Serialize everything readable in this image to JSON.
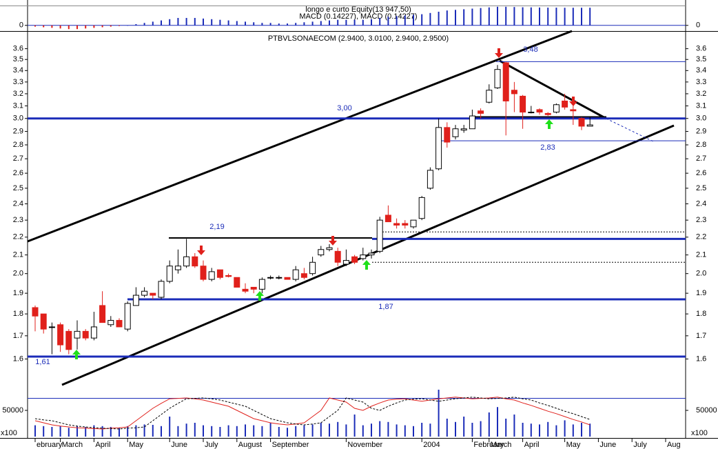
{
  "chart_data": [
    {
      "type": "macd-histogram",
      "title": "longo e curto Equity(13 947,50)",
      "subtitle": "MACD (0.14227), MACD (0.14227)",
      "ylim": [
        -0.04,
        0.16
      ],
      "yticks": [
        0
      ],
      "pos_color": "#1a2bb8",
      "neg_color": "#e0201b",
      "values": [
        -0.01,
        -0.015,
        -0.02,
        -0.025,
        -0.03,
        -0.03,
        -0.025,
        -0.02,
        -0.015,
        -0.01,
        -0.005,
        0,
        0.01,
        0.02,
        0.03,
        0.04,
        0.05,
        0.06,
        0.06,
        0.06,
        0.055,
        0.05,
        0.045,
        0.04,
        0.035,
        0.03,
        0.025,
        0.02,
        0.02,
        0.015,
        0.015,
        0.02,
        0.025,
        0.03,
        0.035,
        0.04,
        0.045,
        0.045,
        0.045,
        0.045,
        0.05,
        0.06,
        0.07,
        0.075,
        0.08,
        0.085,
        0.09,
        0.1,
        0.11,
        0.12,
        0.125,
        0.13,
        0.135,
        0.14,
        0.145,
        0.15,
        0.15,
        0.148,
        0.146,
        0.145,
        0.144,
        0.143,
        0.143,
        0.142,
        0.142,
        0.142,
        0.14227,
        null,
        null,
        null,
        null,
        null,
        null,
        null,
        null,
        null,
        null,
        null
      ]
    },
    {
      "type": "candlestick",
      "title": "PTBVLSONAECOM (2.9400, 3.0100, 2.9400, 2.9500)",
      "log_scale": true,
      "ylim": [
        1.49,
        3.77
      ],
      "yticks": [
        1.6,
        1.7,
        1.8,
        1.9,
        {
          "value": 2,
          "label": "2.0"
        },
        2.1,
        2.2,
        2.3,
        2.4,
        2.5,
        2.6,
        2.7,
        2.8,
        2.9,
        {
          "value": 3,
          "label": "3.0"
        },
        3.1,
        3.2,
        3.3,
        3.4,
        3.5,
        3.6
      ],
      "up_color": "#ffffff",
      "down_color": "#e0201b",
      "categories": [
        "ebruary",
        null,
        null,
        "March",
        null,
        null,
        null,
        "April",
        null,
        null,
        null,
        "May",
        null,
        null,
        null,
        null,
        "June",
        null,
        null,
        null,
        "July",
        null,
        null,
        null,
        "August",
        null,
        null,
        null,
        "September",
        null,
        null,
        null,
        null,
        null,
        null,
        null,
        null,
        "November",
        null,
        null,
        null,
        null,
        null,
        null,
        null,
        null,
        "2004",
        null,
        null,
        null,
        null,
        null,
        "February",
        null,
        "March",
        null,
        null,
        null,
        "April",
        null,
        null,
        null,
        null,
        "May",
        null,
        null,
        null,
        "June",
        null,
        null,
        null,
        "July",
        null,
        null,
        null,
        "Aug",
        null,
        null
      ],
      "open": [
        1.83,
        1.8,
        1.74,
        1.75,
        1.72,
        1.69,
        1.72,
        1.69,
        1.84,
        1.75,
        1.77,
        1.73,
        1.84,
        1.89,
        1.9,
        1.88,
        1.96,
        2.02,
        2.04,
        2.09,
        2.04,
        1.97,
        2.02,
        1.99,
        1.98,
        1.92,
        1.93,
        1.92,
        1.98,
        1.98,
        1.98,
        1.97,
        2.0,
        2.0,
        2.1,
        2.13,
        2.12,
        2.05,
        2.09,
        2.08,
        2.1,
        2.12,
        2.33,
        2.28,
        2.28,
        2.26,
        2.31,
        2.5,
        2.63,
        2.93,
        2.86,
        2.91,
        2.92,
        3.06,
        3.13,
        3.25,
        3.47,
        3.23,
        3.18,
        3.05,
        3.07,
        3.04,
        3.05,
        3.14,
        3.07,
        3.0,
        2.94,
        null,
        null,
        null,
        null,
        null,
        null,
        null,
        null,
        null,
        null,
        null
      ],
      "high": [
        1.84,
        1.8,
        1.76,
        1.76,
        1.73,
        1.77,
        1.73,
        1.81,
        1.91,
        1.79,
        1.78,
        1.86,
        1.93,
        1.93,
        1.9,
        1.97,
        2.07,
        2.13,
        2.19,
        2.11,
        2.07,
        2.03,
        2.02,
        2.0,
        1.98,
        1.95,
        1.93,
        1.98,
        1.99,
        1.99,
        1.98,
        2.04,
        2.03,
        2.09,
        2.15,
        2.16,
        2.14,
        2.13,
        2.1,
        2.14,
        2.13,
        2.32,
        2.39,
        2.31,
        2.3,
        2.3,
        2.45,
        2.64,
        3.0,
        2.97,
        2.95,
        2.95,
        3.07,
        3.08,
        3.28,
        3.45,
        3.48,
        3.3,
        3.19,
        3.1,
        3.08,
        3.05,
        3.12,
        3.2,
        3.1,
        3.01,
        3.01,
        null,
        null,
        null,
        null,
        null,
        null,
        null,
        null,
        null,
        null,
        null
      ],
      "low": [
        1.72,
        1.71,
        1.62,
        1.63,
        1.62,
        1.64,
        1.68,
        1.68,
        1.76,
        1.74,
        1.74,
        1.72,
        1.84,
        1.88,
        1.87,
        1.87,
        1.95,
        2.0,
        2.03,
        2.03,
        1.96,
        1.96,
        1.97,
        1.98,
        1.93,
        1.9,
        1.9,
        1.9,
        1.97,
        1.97,
        1.97,
        1.96,
        1.97,
        1.99,
        2.09,
        2.12,
        2.04,
        2.04,
        2.05,
        2.07,
        2.08,
        2.11,
        2.29,
        2.25,
        2.25,
        2.25,
        2.3,
        2.49,
        2.62,
        2.78,
        2.84,
        2.89,
        2.92,
        3.0,
        3.12,
        3.24,
        2.87,
        3.05,
        2.92,
        3.04,
        3.03,
        3.02,
        3.04,
        3.07,
        2.95,
        2.91,
        2.94,
        null,
        null,
        null,
        null,
        null,
        null,
        null,
        null,
        null,
        null,
        null
      ],
      "close": [
        1.79,
        1.73,
        1.74,
        1.66,
        1.64,
        1.72,
        1.69,
        1.74,
        1.76,
        1.77,
        1.74,
        1.85,
        1.89,
        1.91,
        1.89,
        1.96,
        2.04,
        2.04,
        2.09,
        2.04,
        1.97,
        2.01,
        1.98,
        1.985,
        1.93,
        1.91,
        1.92,
        1.97,
        1.98,
        1.98,
        1.97,
        2.02,
        1.98,
        2.06,
        2.13,
        2.14,
        2.06,
        2.07,
        2.06,
        2.1,
        2.11,
        2.3,
        2.29,
        2.27,
        2.27,
        2.3,
        2.44,
        2.62,
        2.93,
        2.82,
        2.92,
        2.92,
        3.02,
        3.04,
        3.23,
        3.41,
        3.14,
        3.2,
        3.05,
        3.05,
        3.05,
        3.03,
        3.11,
        3.09,
        3.06,
        2.94,
        2.95,
        null,
        null,
        null,
        null,
        null,
        null,
        null,
        null,
        null,
        null,
        null
      ],
      "levels": [
        {
          "value": 3.48,
          "label": "3,48"
        },
        {
          "value": 3.0,
          "label": "3,00"
        },
        {
          "value": 2.83,
          "label": "2,83"
        },
        {
          "value": 2.19,
          "label": "2,19"
        },
        {
          "value": 1.87,
          "label": "1,87"
        },
        {
          "value": 1.61,
          "label": "1,61"
        }
      ],
      "dotted_levels": [
        2.23,
        2.06
      ]
    },
    {
      "type": "volume",
      "unit_label": "x100",
      "ylim": [
        0,
        100000
      ],
      "yticks": [
        50000
      ],
      "color": "#1a2bb8",
      "values": [
        14000,
        12000,
        10000,
        12000,
        8000,
        12000,
        10000,
        14000,
        12000,
        10000,
        8000,
        12000,
        14000,
        16000,
        15000,
        12000,
        35000,
        12000,
        18000,
        20000,
        14000,
        12000,
        10000,
        14000,
        12000,
        16000,
        14000,
        12000,
        20000,
        10000,
        8000,
        12000,
        14000,
        16000,
        20000,
        18000,
        22000,
        16000,
        40000,
        14000,
        18000,
        24000,
        22000,
        16000,
        14000,
        12000,
        20000,
        18000,
        100000,
        30000,
        22000,
        35000,
        20000,
        24000,
        45000,
        58000,
        30000,
        40000,
        20000,
        18000,
        16000,
        22000,
        14000,
        26000,
        16000,
        20000,
        18000,
        null,
        null,
        null,
        null,
        null,
        null,
        null,
        null,
        null,
        null,
        null
      ],
      "series": [
        {
          "color": "#e0201b",
          "values": [
            25000,
            20000,
            15000,
            12000,
            10000,
            8000,
            7000,
            6000,
            5000,
            7000,
            8000,
            10000,
            25000,
            40000,
            55000,
            67000,
            78000,
            79000,
            80000,
            78000,
            75000,
            70000,
            65000,
            60000,
            50000,
            40000,
            30000,
            25000,
            20000,
            17000,
            15000,
            17000,
            20000,
            35000,
            50000,
            80000,
            75000,
            70000,
            55000,
            50000,
            60000,
            68000,
            75000,
            77000,
            78000,
            75000,
            72000,
            75000,
            78000,
            80000,
            82000,
            80000,
            78000,
            79000,
            80000,
            82000,
            78000,
            75000,
            68000,
            62000,
            55000,
            48000,
            42000,
            35000,
            28000,
            22000,
            15000,
            null,
            null,
            null,
            null,
            null,
            null,
            null,
            null,
            null,
            null,
            null
          ]
        },
        {
          "color": "#000000",
          "dashed": true,
          "values": [
            30000,
            27000,
            25000,
            20000,
            15000,
            12000,
            10000,
            8000,
            7000,
            6000,
            5000,
            7000,
            8000,
            10000,
            25000,
            40000,
            55000,
            67000,
            78000,
            79000,
            80000,
            78000,
            75000,
            70000,
            65000,
            60000,
            50000,
            40000,
            30000,
            25000,
            20000,
            17000,
            15000,
            17000,
            20000,
            35000,
            50000,
            80000,
            75000,
            70000,
            55000,
            50000,
            60000,
            68000,
            75000,
            77000,
            78000,
            75000,
            72000,
            75000,
            78000,
            80000,
            82000,
            80000,
            78000,
            79000,
            80000,
            82000,
            78000,
            75000,
            68000,
            62000,
            55000,
            48000,
            42000,
            35000,
            28000,
            null,
            null,
            null,
            null,
            null,
            null,
            null,
            null,
            null,
            null,
            null
          ]
        }
      ]
    }
  ]
}
